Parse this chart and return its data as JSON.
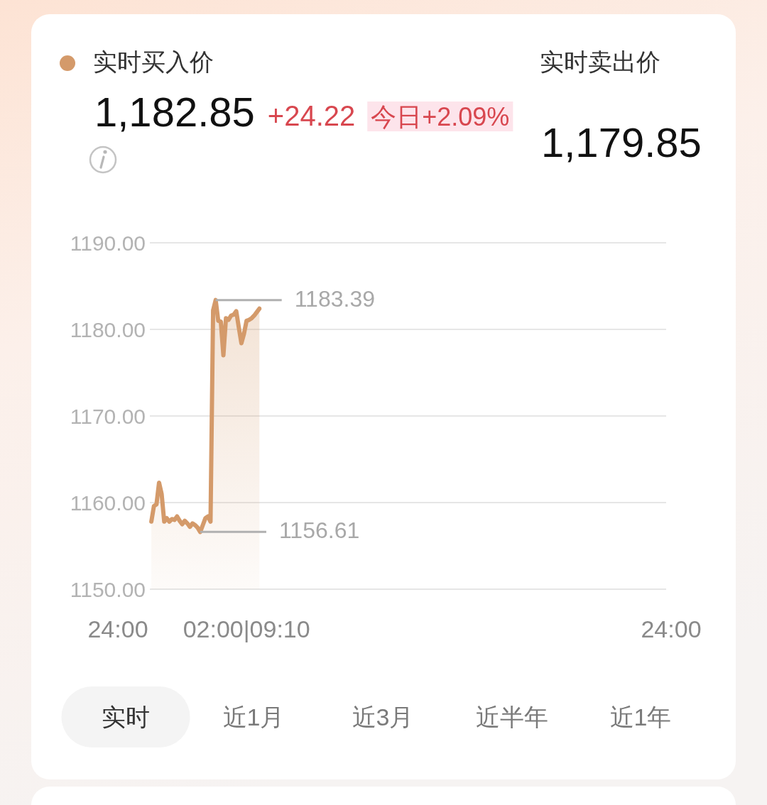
{
  "chart_data": {
    "type": "area",
    "categories": [
      "24:00",
      null,
      null,
      null,
      null,
      null,
      null,
      null,
      null,
      null,
      null,
      null,
      null,
      null,
      null,
      null,
      null,
      null,
      null,
      null,
      null,
      null,
      null,
      null,
      null,
      null,
      null,
      null,
      null,
      null,
      null,
      null,
      null,
      null,
      null,
      null,
      null,
      null,
      null,
      null,
      null,
      null,
      null,
      null,
      null,
      null,
      null,
      null,
      null,
      null,
      "02:00|09:10",
      null,
      null,
      null,
      null,
      null,
      null,
      null,
      null,
      null,
      null,
      null,
      null,
      null,
      null,
      null,
      null,
      null,
      null,
      null,
      null,
      null,
      null,
      null,
      null,
      null,
      null,
      null,
      null,
      null,
      null,
      null,
      null,
      null,
      null,
      null,
      null,
      null,
      null,
      null,
      null,
      null,
      null,
      null,
      null,
      null,
      null,
      null,
      null,
      null,
      null,
      null,
      null,
      null,
      null,
      null,
      null,
      null,
      null,
      null,
      null,
      null,
      null,
      null,
      null,
      null,
      null,
      null,
      null,
      null,
      null,
      null,
      null,
      null,
      null,
      null,
      null,
      null,
      null,
      null,
      null,
      null,
      null,
      null,
      null,
      null,
      null,
      null,
      null,
      null,
      null,
      null,
      null,
      null,
      null,
      null,
      null,
      null,
      null,
      null,
      null,
      null,
      null,
      null,
      null,
      null,
      null,
      null,
      null,
      null,
      null,
      null,
      null,
      null,
      null,
      null,
      null,
      null,
      null,
      null,
      null,
      null,
      null,
      null,
      null,
      null,
      null,
      null,
      null,
      null,
      null,
      null,
      null,
      null,
      null,
      null,
      null,
      null,
      null,
      null,
      null,
      null,
      null,
      null,
      null,
      null,
      null,
      null,
      null,
      null,
      null,
      null,
      null,
      null,
      null,
      null,
      null,
      null,
      null,
      null,
      null,
      null,
      null,
      null,
      null,
      "24:00"
    ],
    "series": [
      {
        "name": "实时买入价",
        "color": "#d49a6a",
        "values": [
          null,
          null,
          null,
          null,
          null,
          null,
          null,
          null,
          null,
          null,
          null,
          null,
          null,
          1157.8,
          1159.6,
          1159.8,
          1162.3,
          1161.0,
          1157.8,
          1158.2,
          1157.8,
          1158.1,
          1158.0,
          1158.4,
          1157.9,
          1157.5,
          1157.9,
          1157.6,
          1157.2,
          1157.6,
          1157.4,
          1157.1,
          1156.61,
          1157.4,
          1158.2,
          1158.4,
          1157.8,
          1182.2,
          1183.39,
          1181.0,
          1180.9,
          1177.0,
          1181.3,
          1181.1,
          1181.6,
          1181.7,
          1182.1,
          1180.2,
          1178.4,
          1179.5,
          1181.0,
          1181.1,
          1181.3,
          1181.6,
          1182.0,
          1182.4,
          null,
          null,
          null,
          null,
          null,
          null,
          null,
          null,
          null,
          null,
          null,
          null,
          null,
          null,
          null,
          null,
          null,
          null,
          null,
          null,
          null,
          null,
          null,
          null,
          null,
          null,
          null,
          null,
          null,
          null,
          null,
          null,
          null,
          null,
          null,
          null,
          null,
          null,
          null,
          null,
          null,
          null,
          null,
          null,
          null,
          null,
          null,
          null,
          null,
          null,
          null,
          null,
          null,
          null,
          null,
          null,
          null,
          null,
          null,
          null,
          null,
          null,
          null,
          null,
          null,
          null,
          null,
          null,
          null,
          null,
          null,
          null,
          null,
          null,
          null,
          null,
          null,
          null,
          null,
          null,
          null,
          null,
          null,
          null,
          null,
          null,
          null,
          null,
          null,
          null,
          null,
          null,
          null,
          null,
          null,
          null,
          null,
          null,
          null,
          null,
          null,
          null,
          null,
          null,
          null,
          null,
          null,
          null,
          null,
          null,
          null,
          null,
          null,
          null,
          null,
          null,
          null,
          null,
          null,
          null,
          null,
          null,
          null,
          null,
          null,
          null,
          null,
          null,
          null,
          null,
          null,
          null,
          null,
          null,
          null,
          null,
          null,
          null,
          null,
          null,
          null,
          null,
          null,
          null,
          null,
          null,
          null,
          null,
          null,
          null,
          null,
          null,
          null,
          null,
          null,
          null,
          null,
          null,
          null,
          null
        ]
      }
    ],
    "ylim": [
      1150,
      1190
    ],
    "yticks": [
      {
        "value": 1150,
        "label": "1150.00"
      },
      {
        "value": 1160,
        "label": "1160.00"
      },
      {
        "value": 1170,
        "label": "1170.00"
      },
      {
        "value": 1180,
        "label": "1180.00"
      },
      {
        "value": 1190,
        "label": "1190.00"
      }
    ],
    "grid": "y",
    "legend": "top left",
    "annotations": [
      "1,182.85",
      "+24.22",
      "今日+2.09%",
      "实时卖出价",
      "1,179.85",
      "实时",
      "近1月",
      "近3月",
      "近半年",
      "近1年",
      "1183.39",
      "1156.61"
    ]
  }
}
